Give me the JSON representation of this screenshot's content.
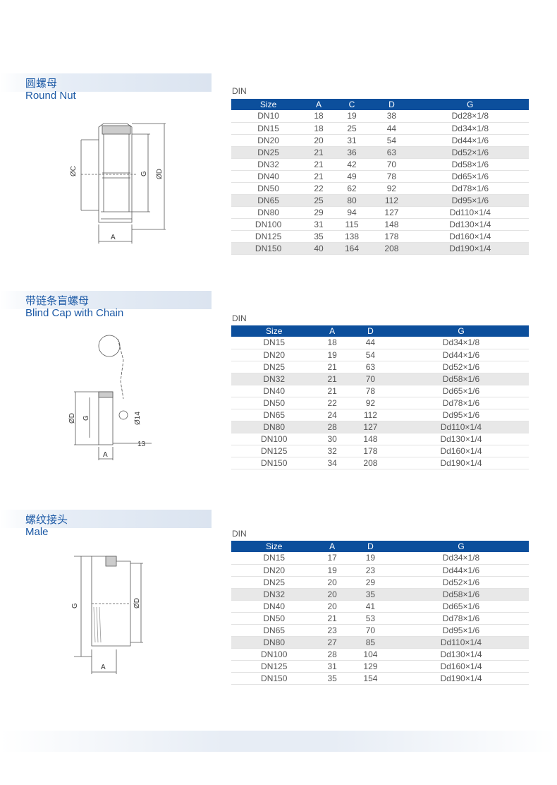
{
  "sections": [
    {
      "title_zh": "圆螺母",
      "title_en": "Round Nut",
      "standard": "DIN",
      "diagram_labels": {
        "c": "ØC",
        "g": "G",
        "d": "ØD",
        "a": "A"
      },
      "columns": [
        "Size",
        "A",
        "C",
        "D",
        "G"
      ],
      "rows": [
        [
          "DN10",
          "18",
          "19",
          "38",
          "Dd28×1/8"
        ],
        [
          "DN15",
          "18",
          "25",
          "44",
          "Dd34×1/8"
        ],
        [
          "DN20",
          "20",
          "31",
          "54",
          "Dd44×1/6"
        ],
        [
          "DN25",
          "21",
          "36",
          "63",
          "Dd52×1/6"
        ],
        [
          "DN32",
          "21",
          "42",
          "70",
          "Dd58×1/6"
        ],
        [
          "DN40",
          "21",
          "49",
          "78",
          "Dd65×1/6"
        ],
        [
          "DN50",
          "22",
          "62",
          "92",
          "Dd78×1/6"
        ],
        [
          "DN65",
          "25",
          "80",
          "112",
          "Dd95×1/6"
        ],
        [
          "DN80",
          "29",
          "94",
          "127",
          "Dd110×1/4"
        ],
        [
          "DN100",
          "31",
          "115",
          "148",
          "Dd130×1/4"
        ],
        [
          "DN125",
          "35",
          "138",
          "178",
          "Dd160×1/4"
        ],
        [
          "DN150",
          "40",
          "164",
          "208",
          "Dd190×1/4"
        ]
      ]
    },
    {
      "title_zh": "带链条盲螺母",
      "title_en": "Blind Cap with Chain",
      "standard": "DIN",
      "diagram_labels": {
        "d": "ØD",
        "g": "G",
        "d14": "Ø14",
        "n13": "13",
        "a": "A"
      },
      "columns": [
        "Size",
        "A",
        "D",
        "G"
      ],
      "rows": [
        [
          "DN15",
          "18",
          "44",
          "Dd34×1/8"
        ],
        [
          "DN20",
          "19",
          "54",
          "Dd44×1/6"
        ],
        [
          "DN25",
          "21",
          "63",
          "Dd52×1/6"
        ],
        [
          "DN32",
          "21",
          "70",
          "Dd58×1/6"
        ],
        [
          "DN40",
          "21",
          "78",
          "Dd65×1/6"
        ],
        [
          "DN50",
          "22",
          "92",
          "Dd78×1/6"
        ],
        [
          "DN65",
          "24",
          "112",
          "Dd95×1/6"
        ],
        [
          "DN80",
          "28",
          "127",
          "Dd110×1/4"
        ],
        [
          "DN100",
          "30",
          "148",
          "Dd130×1/4"
        ],
        [
          "DN125",
          "32",
          "178",
          "Dd160×1/4"
        ],
        [
          "DN150",
          "34",
          "208",
          "Dd190×1/4"
        ]
      ]
    },
    {
      "title_zh": "螺纹接头",
      "title_en": "Male",
      "standard": "DIN",
      "diagram_labels": {
        "g": "G",
        "d": "ØD",
        "a": "A"
      },
      "columns": [
        "Size",
        "A",
        "D",
        "G"
      ],
      "rows": [
        [
          "DN15",
          "17",
          "19",
          "Dd34×1/8"
        ],
        [
          "DN20",
          "19",
          "23",
          "Dd44×1/6"
        ],
        [
          "DN25",
          "20",
          "29",
          "Dd52×1/6"
        ],
        [
          "DN32",
          "20",
          "35",
          "Dd58×1/6"
        ],
        [
          "DN40",
          "20",
          "41",
          "Dd65×1/6"
        ],
        [
          "DN50",
          "21",
          "53",
          "Dd78×1/6"
        ],
        [
          "DN65",
          "23",
          "70",
          "Dd95×1/6"
        ],
        [
          "DN80",
          "27",
          "85",
          "Dd110×1/4"
        ],
        [
          "DN100",
          "28",
          "104",
          "Dd130×1/4"
        ],
        [
          "DN125",
          "31",
          "129",
          "Dd160×1/4"
        ],
        [
          "DN150",
          "35",
          "154",
          "Dd190×1/4"
        ]
      ]
    }
  ],
  "colors": {
    "header_blue": "#0c4f9c",
    "title_blue": "#1d5aa6",
    "shade_row": "#e8e8e8"
  }
}
